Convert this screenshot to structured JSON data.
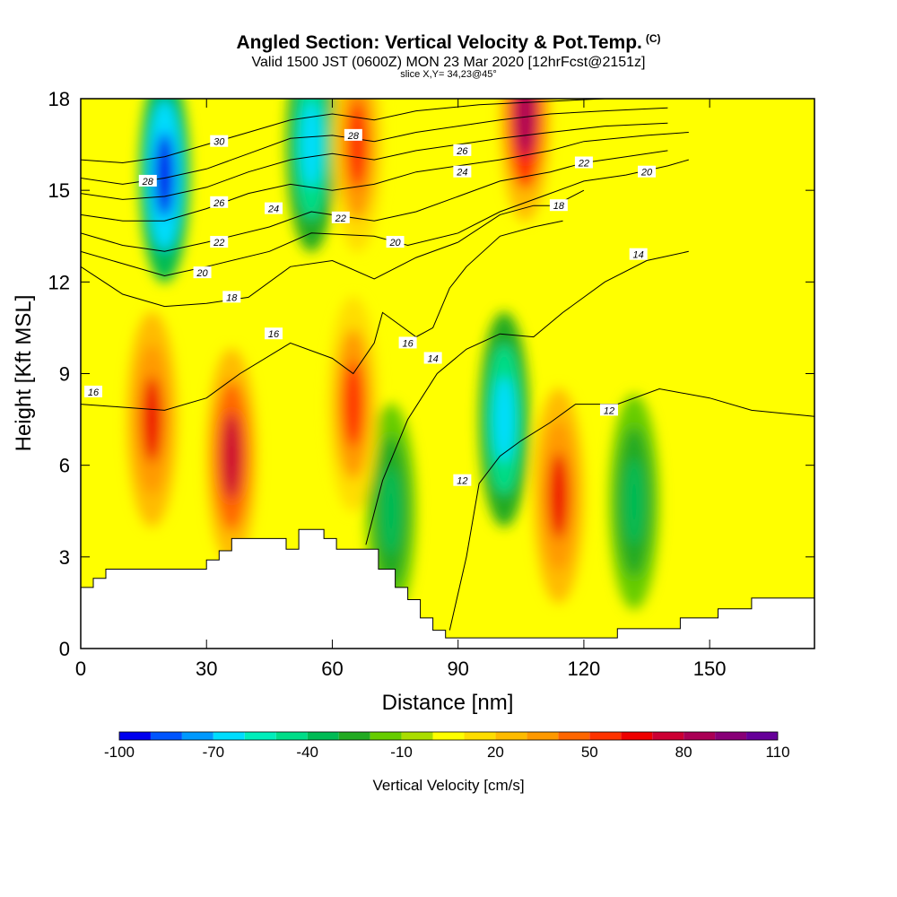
{
  "header": {
    "title": "Angled Section: Vertical Velocity & Pot.Temp.",
    "title_mark": "(C)",
    "subtitle": "Valid 1500 JST (0600Z) MON 23 Mar 2020 [12hrFcst@2151z]",
    "subtitle2": "slice X,Y= 34,23@45°"
  },
  "chart_data": {
    "type": "heatmap",
    "xlabel": "Distance [nm]",
    "ylabel": "Height [Kft MSL]",
    "xlim": [
      0,
      175
    ],
    "ylim": [
      0,
      18
    ],
    "x_ticks": [
      "0",
      "30",
      "60",
      "90",
      "120",
      "150"
    ],
    "x_tick_values": [
      0,
      30,
      60,
      90,
      120,
      150
    ],
    "y_ticks": [
      "0",
      "3",
      "6",
      "9",
      "12",
      "15",
      "18"
    ],
    "y_tick_values": [
      0,
      3,
      6,
      9,
      12,
      15,
      18
    ],
    "colorbar": {
      "title": "Vertical Velocity [cm/s]",
      "labels": [
        "-100",
        "-70",
        "-40",
        "-10",
        "20",
        "50",
        "80",
        "110"
      ],
      "colors": [
        "#0000ee",
        "#0055ff",
        "#0099ff",
        "#00ddff",
        "#00eebb",
        "#00dd88",
        "#00bb55",
        "#22aa22",
        "#66cc00",
        "#aadd00",
        "#ffff00",
        "#ffdd00",
        "#ffbb00",
        "#ff9900",
        "#ff6600",
        "#ff3300",
        "#ee0000",
        "#cc0033",
        "#aa0055",
        "#880077",
        "#660099"
      ]
    },
    "terrain": [
      [
        0,
        2
      ],
      [
        3,
        2
      ],
      [
        3,
        2.3
      ],
      [
        6,
        2.3
      ],
      [
        6,
        2.6
      ],
      [
        30,
        2.6
      ],
      [
        30,
        2.9
      ],
      [
        33,
        2.9
      ],
      [
        33,
        3.2
      ],
      [
        36,
        3.2
      ],
      [
        36,
        3.6
      ],
      [
        49,
        3.6
      ],
      [
        49,
        3.25
      ],
      [
        52,
        3.25
      ],
      [
        52,
        3.9
      ],
      [
        58,
        3.9
      ],
      [
        58,
        3.6
      ],
      [
        61,
        3.6
      ],
      [
        61,
        3.25
      ],
      [
        71,
        3.25
      ],
      [
        71,
        2.6
      ],
      [
        75,
        2.6
      ],
      [
        75,
        2.0
      ],
      [
        78,
        2.0
      ],
      [
        78,
        1.6
      ],
      [
        81,
        1.6
      ],
      [
        81,
        1.0
      ],
      [
        84,
        1.0
      ],
      [
        84,
        0.6
      ],
      [
        87,
        0.6
      ],
      [
        87,
        0.35
      ],
      [
        128,
        0.35
      ],
      [
        128,
        0.65
      ],
      [
        143,
        0.65
      ],
      [
        143,
        1.0
      ],
      [
        152,
        1.0
      ],
      [
        152,
        1.3
      ],
      [
        160,
        1.3
      ],
      [
        160,
        1.65
      ],
      [
        175,
        1.65
      ]
    ],
    "w_features": [
      {
        "x": 20,
        "y": 15.5,
        "value": -100
      },
      {
        "x": 55,
        "y": 16.5,
        "value": -70
      },
      {
        "x": 101,
        "y": 7.5,
        "value": -70
      },
      {
        "x": 74,
        "y": 4.5,
        "value": -40
      },
      {
        "x": 132,
        "y": 4.8,
        "value": -40
      },
      {
        "x": 17,
        "y": 7.5,
        "value": 60
      },
      {
        "x": 36,
        "y": 6.3,
        "value": 70
      },
      {
        "x": 65,
        "y": 8,
        "value": 50
      },
      {
        "x": 114,
        "y": 5,
        "value": 60
      },
      {
        "x": 106,
        "y": 17.5,
        "value": 80
      },
      {
        "x": 66,
        "y": 16.5,
        "value": 50
      }
    ],
    "theta_contours": [
      {
        "label": "16",
        "points": [
          [
            0,
            8.0
          ],
          [
            10,
            7.9
          ],
          [
            20,
            7.8
          ],
          [
            30,
            8.2
          ],
          [
            38,
            9.0
          ],
          [
            50,
            10.0
          ],
          [
            60,
            9.5
          ],
          [
            65,
            9.0
          ],
          [
            70,
            10
          ],
          [
            72,
            11
          ],
          [
            75,
            10.7
          ],
          [
            80,
            10.2
          ],
          [
            84,
            10.5
          ],
          [
            88,
            11.8
          ],
          [
            92,
            12.5
          ],
          [
            100,
            13.5
          ],
          [
            108,
            13.8
          ],
          [
            115,
            14.0
          ]
        ],
        "labels": [
          [
            3,
            8.4
          ],
          [
            46,
            10.3
          ],
          [
            78,
            10.0
          ]
        ]
      },
      {
        "label": "14",
        "points": [
          [
            68,
            3.4
          ],
          [
            72,
            5.5
          ],
          [
            78,
            7.5
          ],
          [
            85,
            9.0
          ],
          [
            92,
            9.8
          ],
          [
            100,
            10.3
          ],
          [
            108,
            10.2
          ],
          [
            115,
            11.0
          ],
          [
            125,
            12.0
          ],
          [
            135,
            12.7
          ],
          [
            145,
            13.0
          ]
        ],
        "labels": [
          [
            84,
            9.5
          ],
          [
            133,
            12.9
          ]
        ]
      },
      {
        "label": "12",
        "points": [
          [
            88,
            0.6
          ],
          [
            92,
            3
          ],
          [
            95,
            5.4
          ],
          [
            100,
            6.3
          ],
          [
            105,
            6.8
          ],
          [
            112,
            7.4
          ],
          [
            118,
            8.0
          ],
          [
            128,
            8.0
          ],
          [
            138,
            8.5
          ],
          [
            150,
            8.2
          ],
          [
            160,
            7.8
          ],
          [
            175,
            7.6
          ]
        ],
        "labels": [
          [
            91,
            5.5
          ],
          [
            126,
            7.8
          ]
        ]
      },
      {
        "label": "18",
        "points": [
          [
            0,
            12.5
          ],
          [
            10,
            11.6
          ],
          [
            20,
            11.2
          ],
          [
            30,
            11.3
          ],
          [
            40,
            11.5
          ],
          [
            50,
            12.5
          ],
          [
            60,
            12.7
          ],
          [
            70,
            12.1
          ],
          [
            80,
            12.8
          ],
          [
            90,
            13.3
          ],
          [
            100,
            14.2
          ],
          [
            108,
            14.5
          ],
          [
            113,
            14.5
          ],
          [
            120,
            15.0
          ]
        ],
        "labels": [
          [
            36,
            11.5
          ],
          [
            114,
            14.5
          ]
        ]
      },
      {
        "label": "20",
        "points": [
          [
            0,
            13.0
          ],
          [
            10,
            12.6
          ],
          [
            20,
            12.2
          ],
          [
            30,
            12.5
          ],
          [
            45,
            13.0
          ],
          [
            55,
            13.6
          ],
          [
            70,
            13.5
          ],
          [
            78,
            13.2
          ],
          [
            90,
            13.6
          ],
          [
            100,
            14.3
          ],
          [
            110,
            14.8
          ],
          [
            120,
            15.3
          ],
          [
            130,
            15.5
          ],
          [
            140,
            15.8
          ],
          [
            145,
            16.0
          ]
        ],
        "labels": [
          [
            29,
            12.3
          ],
          [
            75,
            13.3
          ],
          [
            135,
            15.6
          ]
        ]
      },
      {
        "label": "22",
        "points": [
          [
            0,
            13.6
          ],
          [
            10,
            13.2
          ],
          [
            20,
            13.0
          ],
          [
            30,
            13.3
          ],
          [
            45,
            13.8
          ],
          [
            55,
            14.3
          ],
          [
            70,
            14.0
          ],
          [
            80,
            14.3
          ],
          [
            90,
            14.8
          ],
          [
            100,
            15.3
          ],
          [
            112,
            15.6
          ],
          [
            120,
            15.9
          ],
          [
            130,
            16.1
          ],
          [
            140,
            16.3
          ]
        ],
        "labels": [
          [
            33,
            13.3
          ],
          [
            62,
            14.1
          ],
          [
            120,
            15.9
          ]
        ]
      },
      {
        "label": "24",
        "points": [
          [
            0,
            14.2
          ],
          [
            10,
            14.0
          ],
          [
            20,
            14.0
          ],
          [
            30,
            14.4
          ],
          [
            40,
            14.9
          ],
          [
            50,
            15.2
          ],
          [
            60,
            15.0
          ],
          [
            70,
            15.2
          ],
          [
            80,
            15.6
          ],
          [
            90,
            15.8
          ],
          [
            100,
            16.0
          ],
          [
            112,
            16.3
          ],
          [
            120,
            16.6
          ],
          [
            135,
            16.8
          ],
          [
            145,
            16.9
          ]
        ],
        "labels": [
          [
            46,
            14.4
          ],
          [
            91,
            15.6
          ]
        ]
      },
      {
        "label": "26",
        "points": [
          [
            0,
            14.9
          ],
          [
            10,
            14.7
          ],
          [
            20,
            14.8
          ],
          [
            30,
            15.1
          ],
          [
            40,
            15.6
          ],
          [
            50,
            16.0
          ],
          [
            60,
            16.2
          ],
          [
            70,
            16.0
          ],
          [
            80,
            16.3
          ],
          [
            90,
            16.5
          ],
          [
            100,
            16.7
          ],
          [
            112,
            16.9
          ],
          [
            125,
            17.1
          ],
          [
            140,
            17.2
          ]
        ],
        "labels": [
          [
            33,
            14.6
          ],
          [
            91,
            16.3
          ]
        ]
      },
      {
        "label": "28",
        "points": [
          [
            0,
            15.4
          ],
          [
            10,
            15.2
          ],
          [
            20,
            15.4
          ],
          [
            30,
            15.7
          ],
          [
            40,
            16.2
          ],
          [
            50,
            16.7
          ],
          [
            60,
            16.8
          ],
          [
            70,
            16.6
          ],
          [
            80,
            16.9
          ],
          [
            90,
            17.1
          ],
          [
            100,
            17.3
          ],
          [
            112,
            17.5
          ],
          [
            125,
            17.6
          ],
          [
            140,
            17.7
          ]
        ],
        "labels": [
          [
            16,
            15.3
          ],
          [
            65,
            16.8
          ]
        ]
      },
      {
        "label": "30",
        "points": [
          [
            0,
            16.0
          ],
          [
            10,
            15.9
          ],
          [
            20,
            16.1
          ],
          [
            30,
            16.5
          ],
          [
            40,
            16.9
          ],
          [
            50,
            17.3
          ],
          [
            60,
            17.5
          ],
          [
            70,
            17.3
          ],
          [
            80,
            17.6
          ],
          [
            95,
            17.8
          ],
          [
            110,
            17.9
          ],
          [
            125,
            18.0
          ]
        ],
        "labels": [
          [
            33,
            16.6
          ]
        ]
      }
    ]
  }
}
